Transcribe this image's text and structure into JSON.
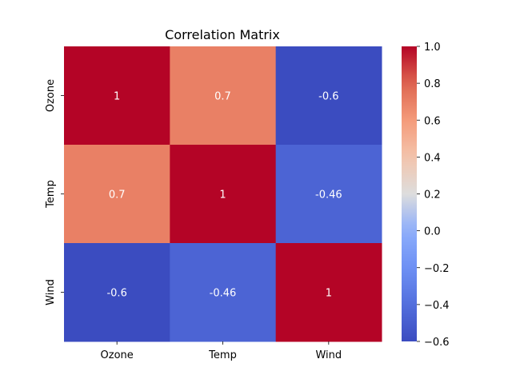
{
  "chart_data": {
    "type": "heatmap",
    "title": "Correlation Matrix",
    "x_categories": [
      "Ozone",
      "Temp",
      "Wind"
    ],
    "y_categories": [
      "Ozone",
      "Temp",
      "Wind"
    ],
    "values": [
      [
        1.0,
        0.7,
        -0.6
      ],
      [
        0.7,
        1.0,
        -0.46
      ],
      [
        -0.6,
        -0.46,
        1.0
      ]
    ],
    "annotations": [
      [
        "1",
        "0.7",
        "-0.6"
      ],
      [
        "0.7",
        "1",
        "-0.46"
      ],
      [
        "-0.6",
        "-0.46",
        "1"
      ]
    ],
    "colormap": "coolwarm",
    "colorbar": {
      "vmin": -0.6,
      "vmax": 1.0,
      "ticks": [
        1.0,
        0.8,
        0.6,
        0.4,
        0.2,
        0.0,
        -0.2,
        -0.4,
        -0.6
      ],
      "tick_labels": [
        "1.0",
        "0.8",
        "0.6",
        "0.4",
        "0.2",
        "0.0",
        "−0.2",
        "−0.4",
        "−0.6"
      ]
    },
    "annotation_color": "#ffffff"
  }
}
